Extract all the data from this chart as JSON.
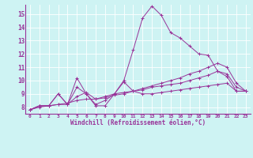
{
  "title": "",
  "xlabel": "Windchill (Refroidissement éolien,°C)",
  "ylabel": "",
  "bg_color": "#cef3f3",
  "line_color": "#993399",
  "marker": "+",
  "x_min": -0.5,
  "x_max": 23.5,
  "y_min": 7.5,
  "y_max": 15.7,
  "yticks": [
    8,
    9,
    10,
    11,
    12,
    13,
    14,
    15
  ],
  "xticks": [
    0,
    1,
    2,
    3,
    4,
    5,
    6,
    7,
    8,
    9,
    10,
    11,
    12,
    13,
    14,
    15,
    16,
    17,
    18,
    19,
    20,
    21,
    22,
    23
  ],
  "series": [
    [
      7.8,
      8.1,
      8.1,
      9.0,
      8.2,
      10.2,
      9.0,
      8.1,
      8.1,
      9.0,
      10.0,
      12.3,
      14.7,
      15.6,
      14.9,
      13.6,
      13.2,
      12.6,
      12.0,
      11.9,
      10.7,
      10.3,
      9.2,
      9.2
    ],
    [
      7.8,
      8.1,
      8.1,
      9.0,
      8.2,
      9.5,
      9.0,
      8.2,
      8.5,
      9.0,
      9.9,
      9.2,
      9.0,
      9.0,
      9.1,
      9.2,
      9.3,
      9.4,
      9.5,
      9.6,
      9.7,
      9.8,
      9.2,
      9.2
    ],
    [
      7.8,
      8.1,
      8.1,
      8.2,
      8.2,
      8.8,
      9.1,
      8.6,
      8.8,
      9.0,
      9.1,
      9.2,
      9.3,
      9.5,
      9.6,
      9.7,
      9.8,
      10.0,
      10.2,
      10.4,
      10.7,
      10.5,
      9.5,
      9.2
    ],
    [
      7.8,
      8.0,
      8.1,
      8.2,
      8.3,
      8.5,
      8.6,
      8.6,
      8.7,
      8.9,
      9.0,
      9.2,
      9.4,
      9.6,
      9.8,
      10.0,
      10.2,
      10.5,
      10.7,
      11.0,
      11.3,
      11.0,
      9.8,
      9.2
    ]
  ],
  "figsize": [
    3.2,
    2.0
  ],
  "dpi": 100
}
